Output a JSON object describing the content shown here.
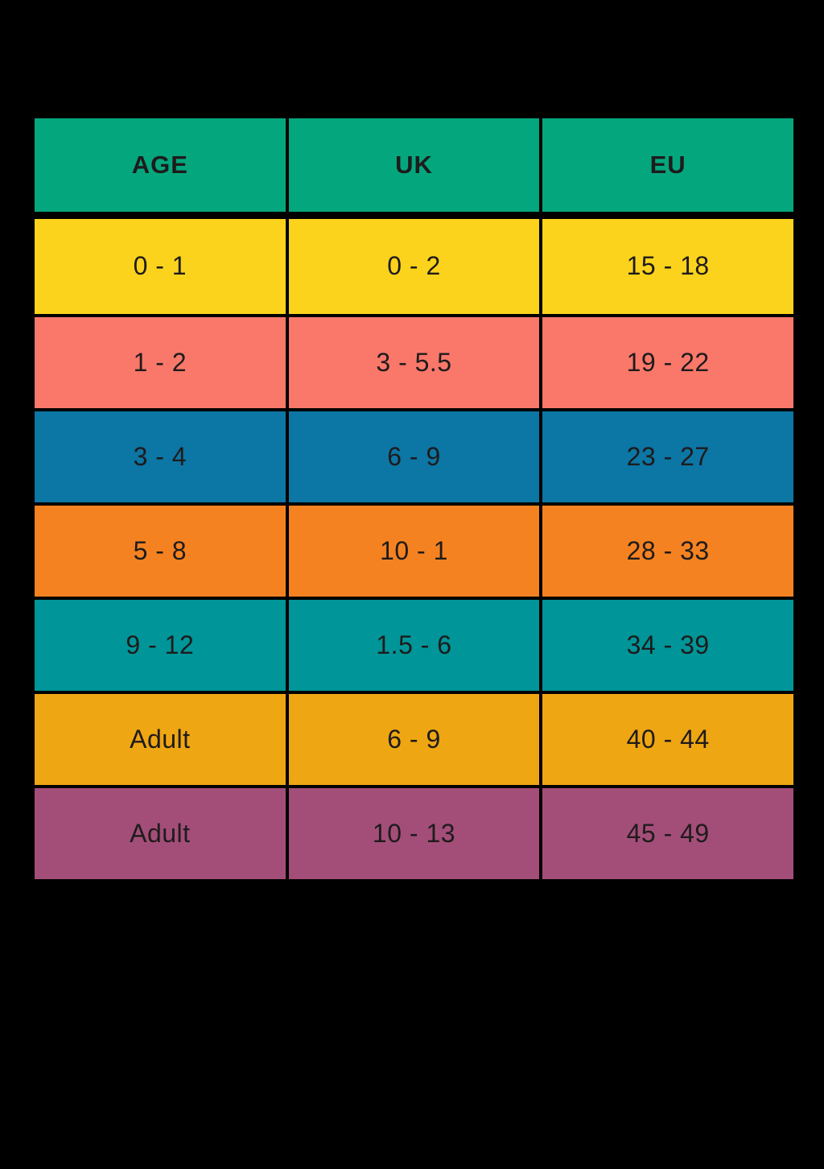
{
  "page": {
    "background_color": "#000000",
    "text_color": "#1e1b1c",
    "border_color": "#000000"
  },
  "chart_data": {
    "type": "table",
    "title": "",
    "columns": [
      "AGE",
      "UK",
      "EU"
    ],
    "header_color": "#04A77D",
    "row_colors": [
      "#FBD31C",
      "#F9786A",
      "#0C76A4",
      "#F58220",
      "#009598",
      "#EEA612",
      "#A34E78"
    ],
    "rows": [
      [
        "0 - 1",
        "0 - 2",
        "15 - 18"
      ],
      [
        "1 - 2",
        "3 - 5.5",
        "19 - 22"
      ],
      [
        "3 - 4",
        "6 - 9",
        "23 - 27"
      ],
      [
        "5 - 8",
        "10 - 1",
        "28 - 33"
      ],
      [
        "9 - 12",
        "1.5 - 6",
        "34 - 39"
      ],
      [
        "Adult",
        "6 - 9",
        "40 - 44"
      ],
      [
        "Adult",
        "10 - 13",
        "45 - 49"
      ]
    ]
  }
}
